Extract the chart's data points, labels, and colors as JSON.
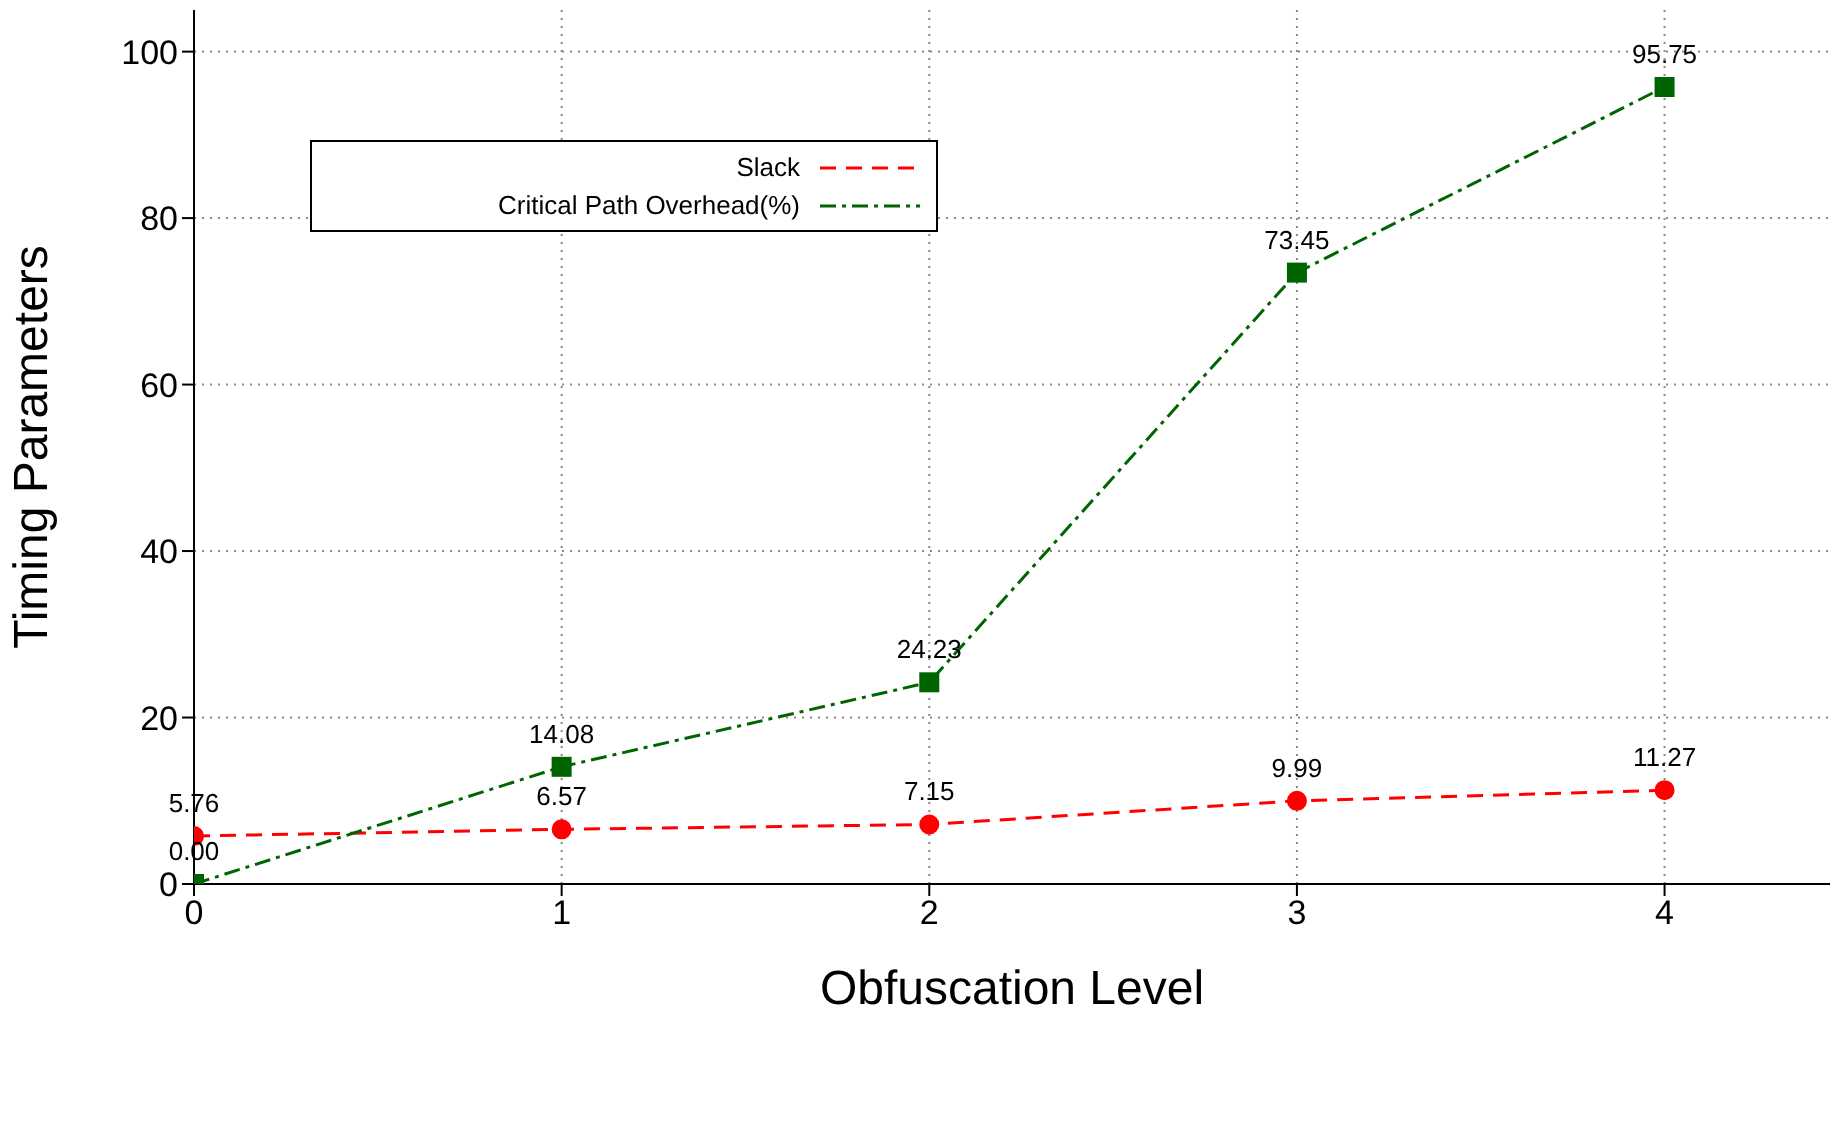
{
  "chart_data": {
    "type": "line",
    "xlabel": "Obfuscation Level",
    "ylabel": "Timing Parameters",
    "x": [
      0,
      1,
      2,
      3,
      4
    ],
    "series": [
      {
        "name": "Slack",
        "color": "#ff0000",
        "values": [
          5.76,
          6.57,
          7.15,
          9.99,
          11.27
        ],
        "value_labels": [
          "5.76",
          "6.57",
          "7.15",
          "9.99",
          "11.27"
        ],
        "marker": "circle",
        "line_style": "dashed"
      },
      {
        "name": "Critical Path Overhead(%)",
        "color": "#006400",
        "values": [
          0.0,
          14.08,
          24.23,
          73.45,
          95.75
        ],
        "value_labels": [
          "0.00",
          "14.08",
          "24.23",
          "73.45",
          "95.75"
        ],
        "marker": "square",
        "line_style": "dashdot"
      }
    ],
    "xlim": [
      0,
      4.45
    ],
    "xticks": [
      0,
      1,
      2,
      3,
      4
    ],
    "ylim": [
      0,
      105
    ],
    "yticks": [
      0,
      20,
      40,
      60,
      80,
      100
    ],
    "grid": true,
    "legend": "top left"
  }
}
